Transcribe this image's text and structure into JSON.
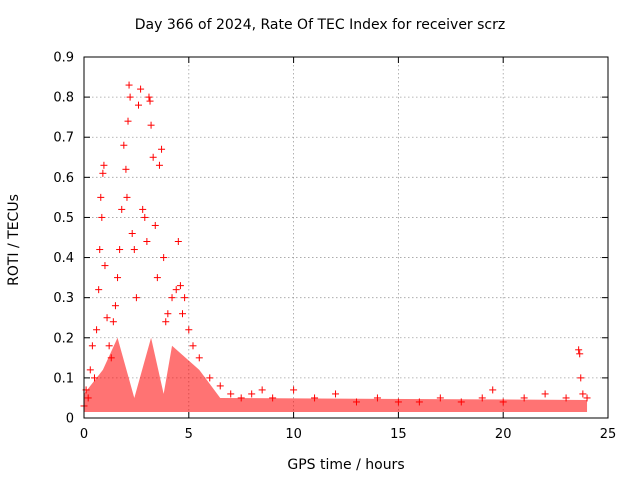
{
  "chart_data": {
    "type": "scatter",
    "title": "Day 366 of 2024, Rate Of TEC Index for receiver scrz",
    "xlabel": "GPS time / hours",
    "ylabel": "ROTI / TECUs",
    "xlim": [
      0,
      25
    ],
    "ylim": [
      0,
      0.9
    ],
    "xticks": [
      0,
      5,
      10,
      15,
      20,
      25
    ],
    "xtick_labels": [
      "0",
      "5",
      "10",
      "15",
      "20",
      "25"
    ],
    "yticks": [
      0,
      0.1,
      0.2,
      0.3,
      0.4,
      0.5,
      0.6,
      0.7,
      0.8,
      0.9
    ],
    "ytick_labels": [
      "0",
      "0.1",
      "0.2",
      "0.3",
      "0.4",
      "0.5",
      "0.6",
      "0.7",
      "0.8",
      "0.9"
    ],
    "grid": true,
    "marker": "+",
    "color": "#ff0000",
    "series": [
      {
        "name": "ROTI",
        "points": [
          [
            0.0,
            0.03
          ],
          [
            0.1,
            0.07
          ],
          [
            0.2,
            0.05
          ],
          [
            0.3,
            0.12
          ],
          [
            0.4,
            0.18
          ],
          [
            0.5,
            0.1
          ],
          [
            0.6,
            0.22
          ],
          [
            0.7,
            0.32
          ],
          [
            0.75,
            0.42
          ],
          [
            0.8,
            0.55
          ],
          [
            0.85,
            0.5
          ],
          [
            0.9,
            0.61
          ],
          [
            0.95,
            0.63
          ],
          [
            1.0,
            0.38
          ],
          [
            1.1,
            0.25
          ],
          [
            1.2,
            0.18
          ],
          [
            1.3,
            0.15
          ],
          [
            1.4,
            0.24
          ],
          [
            1.5,
            0.28
          ],
          [
            1.6,
            0.35
          ],
          [
            1.7,
            0.42
          ],
          [
            1.8,
            0.52
          ],
          [
            1.9,
            0.68
          ],
          [
            2.0,
            0.62
          ],
          [
            2.05,
            0.55
          ],
          [
            2.1,
            0.74
          ],
          [
            2.15,
            0.83
          ],
          [
            2.2,
            0.8
          ],
          [
            2.3,
            0.46
          ],
          [
            2.4,
            0.42
          ],
          [
            2.5,
            0.3
          ],
          [
            2.6,
            0.78
          ],
          [
            2.7,
            0.82
          ],
          [
            2.8,
            0.52
          ],
          [
            2.9,
            0.5
          ],
          [
            3.0,
            0.44
          ],
          [
            3.1,
            0.8
          ],
          [
            3.15,
            0.79
          ],
          [
            3.2,
            0.73
          ],
          [
            3.3,
            0.65
          ],
          [
            3.4,
            0.48
          ],
          [
            3.5,
            0.35
          ],
          [
            3.6,
            0.63
          ],
          [
            3.7,
            0.67
          ],
          [
            3.8,
            0.4
          ],
          [
            3.9,
            0.24
          ],
          [
            4.0,
            0.26
          ],
          [
            4.2,
            0.3
          ],
          [
            4.4,
            0.32
          ],
          [
            4.5,
            0.44
          ],
          [
            4.6,
            0.33
          ],
          [
            4.7,
            0.26
          ],
          [
            4.8,
            0.3
          ],
          [
            5.0,
            0.22
          ],
          [
            5.2,
            0.18
          ],
          [
            5.5,
            0.15
          ],
          [
            6.0,
            0.1
          ],
          [
            6.5,
            0.08
          ],
          [
            7.0,
            0.06
          ],
          [
            7.5,
            0.05
          ],
          [
            8.0,
            0.06
          ],
          [
            8.5,
            0.07
          ],
          [
            9.0,
            0.05
          ],
          [
            10.0,
            0.07
          ],
          [
            11.0,
            0.05
          ],
          [
            12.0,
            0.06
          ],
          [
            13.0,
            0.04
          ],
          [
            14.0,
            0.05
          ],
          [
            15.0,
            0.04
          ],
          [
            16.0,
            0.04
          ],
          [
            17.0,
            0.05
          ],
          [
            18.0,
            0.04
          ],
          [
            19.0,
            0.05
          ],
          [
            19.5,
            0.07
          ],
          [
            20.0,
            0.04
          ],
          [
            21.0,
            0.05
          ],
          [
            22.0,
            0.06
          ],
          [
            23.0,
            0.05
          ],
          [
            23.6,
            0.17
          ],
          [
            23.65,
            0.16
          ],
          [
            23.7,
            0.1
          ],
          [
            23.8,
            0.06
          ],
          [
            24.0,
            0.05
          ]
        ]
      }
    ]
  }
}
